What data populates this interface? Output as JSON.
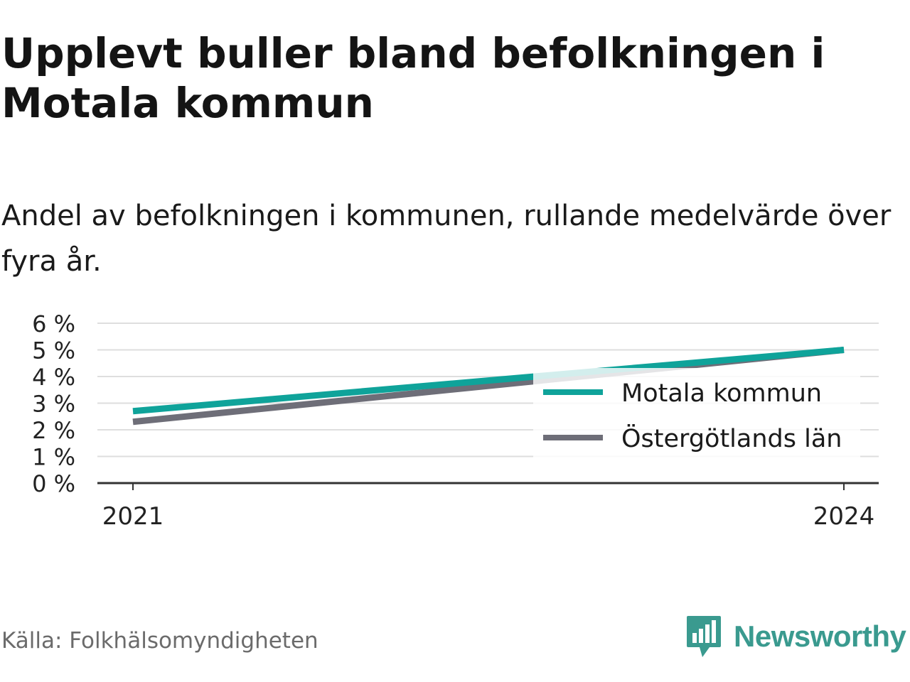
{
  "chart_data": {
    "type": "line",
    "title": "Upplevt buller bland befolkningen i Motala kommun",
    "subtitle": "Andel av befolkningen i kommunen, rullande medelvärde över fyra år.",
    "x": [
      2021,
      2024
    ],
    "x_tick_labels": [
      "2021",
      "2024"
    ],
    "y_ticks": [
      0,
      1,
      2,
      3,
      4,
      5,
      6
    ],
    "y_tick_labels": [
      "0 %",
      "1 %",
      "2 %",
      "3 %",
      "4 %",
      "5 %",
      "6 %"
    ],
    "ylim": [
      0,
      6
    ],
    "grid": true,
    "legend_position": "right",
    "series": [
      {
        "name": "Motala kommun",
        "color": "#0fa39a",
        "values": [
          2.7,
          5.0
        ]
      },
      {
        "name": "Östergötlands län",
        "color": "#6e6e78",
        "values": [
          2.3,
          5.0
        ]
      }
    ]
  },
  "footer": {
    "source": "Källa: Folkhälsomyndigheten",
    "logo_text": "Newsworthy",
    "logo_icon": "newsworthy-logo-icon",
    "logo_color": "#3a9a8f"
  }
}
